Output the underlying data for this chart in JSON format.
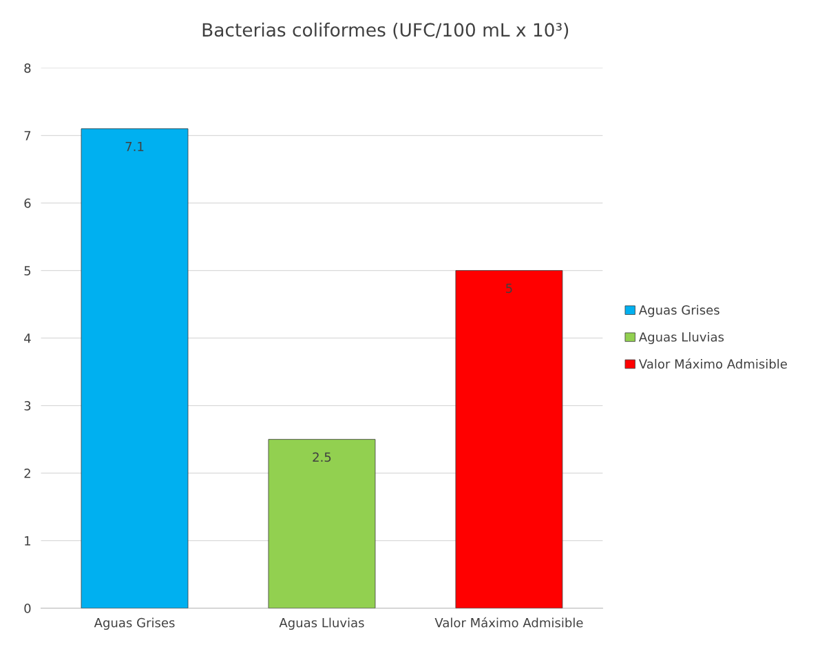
{
  "chart_data": {
    "type": "bar",
    "title": "Bacterias coliformes (UFC/100 mL x 10³)",
    "categories": [
      "Aguas Grises",
      "Aguas Lluvias",
      "Valor Máximo Admisible"
    ],
    "series": [
      {
        "name": "Aguas Grises",
        "color": "#00b0f0",
        "values": [
          7.1,
          null,
          null
        ]
      },
      {
        "name": "Aguas Lluvias",
        "color": "#92d050",
        "values": [
          null,
          2.5,
          null
        ]
      },
      {
        "name": "Valor Máximo Admisible",
        "color": "#ff0000",
        "values": [
          null,
          null,
          5
        ]
      }
    ],
    "ylim": [
      0,
      8
    ],
    "yticks": [
      0,
      1,
      2,
      3,
      4,
      5,
      6,
      7,
      8
    ],
    "grid": "y",
    "legend": "right",
    "data_labels": true
  }
}
